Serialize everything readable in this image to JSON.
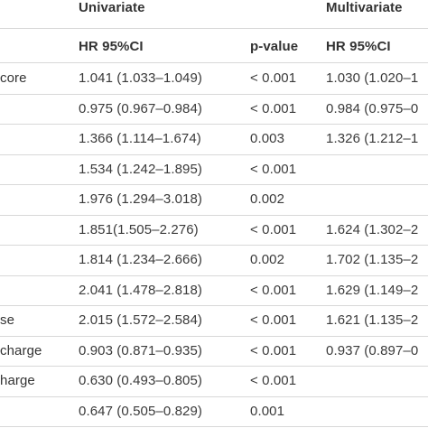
{
  "header": {
    "univariate": "Univariate",
    "multivariate": "Multivariate",
    "hr_uni": "HR 95%CI",
    "p_uni": "p-value",
    "hr_multi": "HR 95%CI"
  },
  "rows": [
    {
      "label": "core",
      "hr_uni": "1.041 (1.033–1.049)",
      "p_uni": "< 0.001",
      "hr_multi": "1.030 (1.020–1"
    },
    {
      "label": "",
      "hr_uni": "0.975 (0.967–0.984)",
      "p_uni": "< 0.001",
      "hr_multi": "0.984 (0.975–0"
    },
    {
      "label": "",
      "hr_uni": "1.366 (1.114–1.674)",
      "p_uni": "0.003",
      "hr_multi": "1.326 (1.212–1"
    },
    {
      "label": "",
      "hr_uni": "1.534 (1.242–1.895)",
      "p_uni": "< 0.001",
      "hr_multi": ""
    },
    {
      "label": "",
      "hr_uni": "1.976 (1.294–3.018)",
      "p_uni": "0.002",
      "hr_multi": ""
    },
    {
      "label": "",
      "hr_uni": "1.851(1.505–2.276)",
      "p_uni": "< 0.001",
      "hr_multi": "1.624 (1.302–2"
    },
    {
      "label": "",
      "hr_uni": "1.814 (1.234–2.666)",
      "p_uni": "0.002",
      "hr_multi": "1.702 (1.135–2"
    },
    {
      "label": "",
      "hr_uni": "2.041 (1.478–2.818)",
      "p_uni": "< 0.001",
      "hr_multi": "1.629 (1.149–2"
    },
    {
      "label": "se",
      "hr_uni": "2.015 (1.572–2.584)",
      "p_uni": "< 0.001",
      "hr_multi": "1.621 (1.135–2"
    },
    {
      "label": "charge",
      "hr_uni": "0.903 (0.871–0.935)",
      "p_uni": "< 0.001",
      "hr_multi": "0.937 (0.897–0"
    },
    {
      "label": "harge",
      "hr_uni": "0.630 (0.493–0.805)",
      "p_uni": "< 0.001",
      "hr_multi": ""
    },
    {
      "label": "",
      "hr_uni": "0.647 (0.505–0.829)",
      "p_uni": "0.001",
      "hr_multi": ""
    }
  ]
}
